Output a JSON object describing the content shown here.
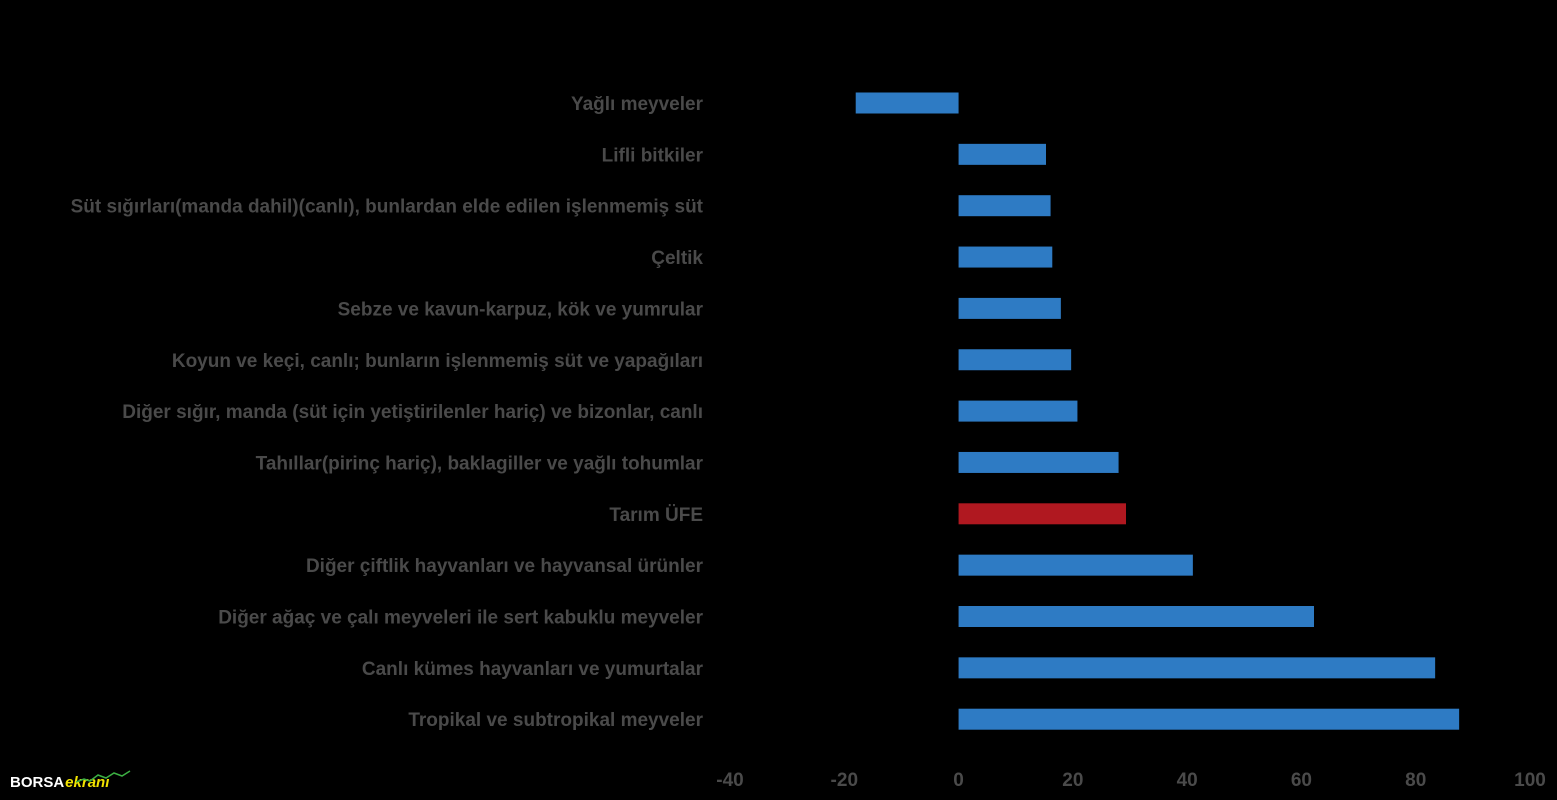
{
  "chart_data": {
    "type": "bar",
    "orientation": "horizontal",
    "categories": [
      "Yağlı meyveler",
      "Lifli bitkiler",
      "Süt sığırları(manda dahil)(canlı), bunlardan elde edilen işlenmemiş süt",
      "Çeltik",
      "Sebze ve kavun-karpuz, kök ve yumrular",
      "Koyun ve keçi, canlı; bunların işlenmemiş süt ve yapağıları",
      "Diğer sığır, manda (süt için yetiştirilenler hariç) ve bizonlar, canlı",
      "Tahıllar(pirinç hariç), baklagiller ve yağlı tohumlar",
      "Tarım ÜFE",
      "Diğer çiftlik hayvanları ve hayvansal ürünler",
      "Diğer ağaç ve çalı meyveleri ile sert kabuklu meyveler",
      "Canlı kümes hayvanları ve yumurtalar",
      "Tropikal ve subtropikal meyveler"
    ],
    "values": [
      -18,
      15.3,
      16.1,
      16.4,
      17.9,
      19.7,
      20.8,
      28.0,
      29.3,
      41.0,
      62.2,
      83.4,
      87.6
    ],
    "highlight_index": 8,
    "colors": {
      "bar": "#2e7bc4",
      "highlight": "#b01820",
      "label": "#4a4a4a",
      "background": "#000000"
    },
    "xlim": [
      -40,
      100
    ],
    "xticks": [
      -40,
      -20,
      0,
      20,
      40,
      60,
      80,
      100
    ],
    "grid": false,
    "legend": "none"
  },
  "logo": {
    "main": "BORSA",
    "sub": "ekranı"
  }
}
